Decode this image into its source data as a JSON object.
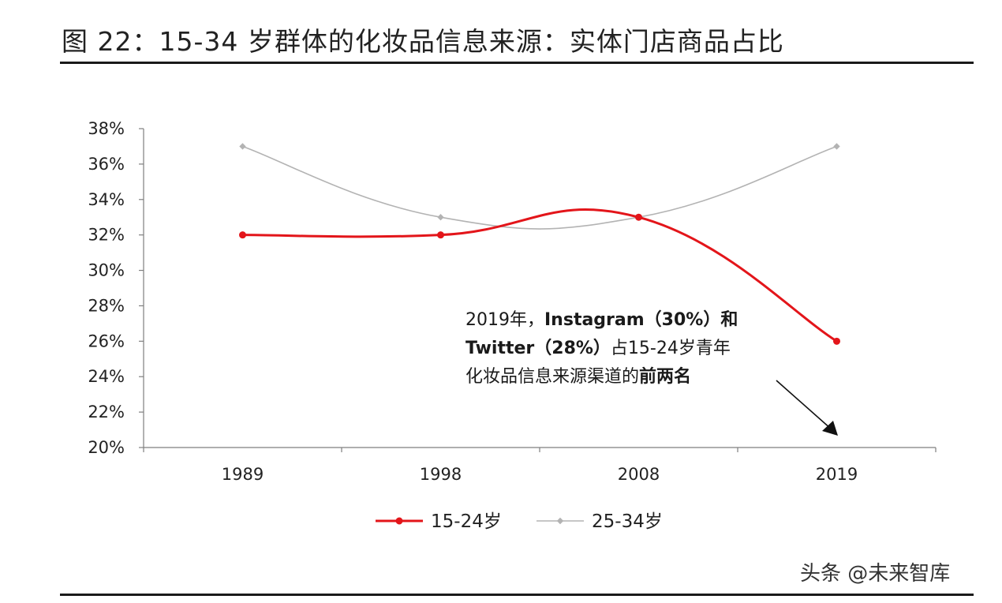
{
  "figure": {
    "title": "图 22：15-34 岁群体的化妆品信息来源：实体门店商品占比"
  },
  "chart_data": {
    "type": "line",
    "title": "",
    "xlabel": "",
    "ylabel": "",
    "categories": [
      "1989",
      "1998",
      "2008",
      "2019"
    ],
    "series": [
      {
        "name": "15-24岁",
        "values": [
          32,
          32,
          33,
          26
        ],
        "color": "#e3151a"
      },
      {
        "name": "25-34岁",
        "values": [
          37,
          33,
          33,
          37
        ],
        "color": "#b3b3b3"
      }
    ],
    "ylim": [
      20,
      38
    ],
    "yticks": [
      20,
      22,
      24,
      26,
      28,
      30,
      32,
      34,
      36,
      38
    ],
    "ytick_labels": [
      "20%",
      "22%",
      "24%",
      "26%",
      "28%",
      "30%",
      "32%",
      "34%",
      "36%",
      "38%"
    ],
    "grid": false,
    "legend_position": "bottom",
    "smooth": true,
    "annotation": {
      "text_plain_1": "2019年，",
      "text_bold_1": "Instagram（30%）和",
      "text_bold_2": "Twitter（28%）",
      "text_plain_2": "占15-24岁青年",
      "text_plain_3": "化妆品信息来源渠道的",
      "text_bold_3": "前两名",
      "points_to": {
        "series": "15-24岁",
        "category": "2019"
      }
    }
  },
  "watermark": "头条 @未来智库"
}
